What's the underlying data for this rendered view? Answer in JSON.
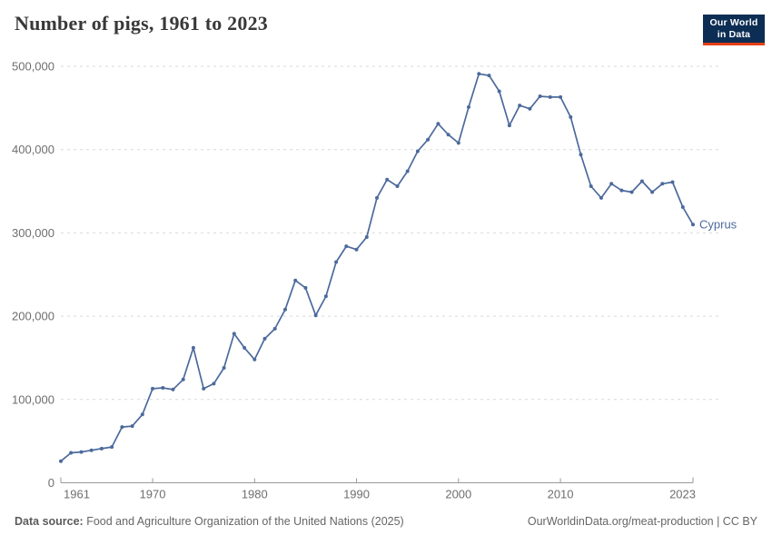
{
  "header": {
    "title": "Number of pigs, 1961 to 2023"
  },
  "logo": {
    "line1": "Our World",
    "line2": "in Data",
    "bg_color": "#0d2e54",
    "accent_color": "#e63e13"
  },
  "footer": {
    "source_label": "Data source:",
    "source_text": " Food and Agriculture Organization of the United Nations (2025)",
    "link_text": "OurWorldinData.org/meat-production | CC BY"
  },
  "chart_data": {
    "type": "line",
    "title": "Number of pigs, 1961 to 2023",
    "xlabel": "",
    "ylabel": "",
    "ylim": [
      0,
      500000
    ],
    "yticks": [
      0,
      100000,
      200000,
      300000,
      400000,
      500000
    ],
    "ytick_labels": [
      "0",
      "100,000",
      "200,000",
      "300,000",
      "400,000",
      "500,000"
    ],
    "xticks": [
      1961,
      1970,
      1980,
      1990,
      2000,
      2010,
      2023
    ],
    "grid": "horizontal dashed",
    "legend": "end-of-line entity label",
    "marker": "point",
    "series": [
      {
        "name": "Cyprus",
        "color": "#4C6A9C",
        "x": [
          1961,
          1962,
          1963,
          1964,
          1965,
          1966,
          1967,
          1968,
          1969,
          1970,
          1971,
          1972,
          1973,
          1974,
          1975,
          1976,
          1977,
          1978,
          1979,
          1980,
          1981,
          1982,
          1983,
          1984,
          1985,
          1986,
          1987,
          1988,
          1989,
          1990,
          1991,
          1992,
          1993,
          1994,
          1995,
          1996,
          1997,
          1998,
          1999,
          2000,
          2001,
          2002,
          2003,
          2004,
          2005,
          2006,
          2007,
          2008,
          2009,
          2010,
          2011,
          2012,
          2013,
          2014,
          2015,
          2016,
          2017,
          2018,
          2019,
          2020,
          2021,
          2022,
          2023
        ],
        "values": [
          26000,
          36000,
          37000,
          39000,
          41000,
          43000,
          67000,
          68000,
          82000,
          113000,
          114000,
          112000,
          124000,
          162000,
          113000,
          119000,
          138000,
          179000,
          162000,
          148000,
          173000,
          185000,
          208000,
          243000,
          234000,
          201000,
          224000,
          265000,
          284000,
          280000,
          295000,
          342000,
          364000,
          356000,
          374000,
          398000,
          412000,
          431000,
          418000,
          408000,
          451000,
          491000,
          489000,
          470000,
          429000,
          453000,
          449000,
          464000,
          463000,
          463000,
          439000,
          394000,
          356000,
          342000,
          359000,
          351000,
          349000,
          362000,
          349000,
          359000,
          361000,
          331000,
          310000
        ]
      }
    ]
  }
}
